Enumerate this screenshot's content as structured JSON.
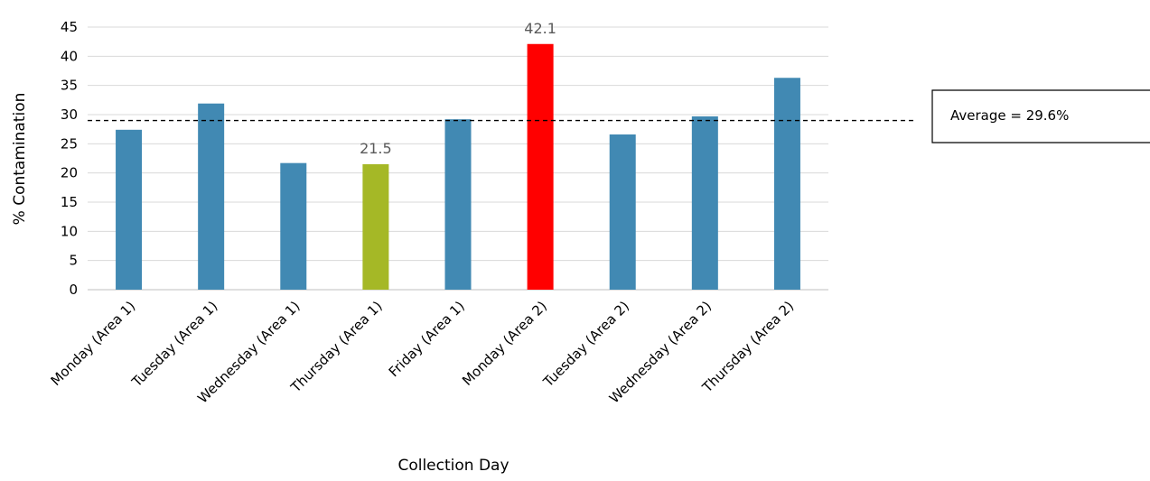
{
  "chart_data": {
    "type": "bar",
    "categories": [
      "Monday (Area 1)",
      "Tuesday (Area 1)",
      "Wednesday (Area 1)",
      "Thursday (Area 1)",
      "Friday (Area 1)",
      "Monday (Area 2)",
      "Tuesday (Area 2)",
      "Wednesday (Area 2)",
      "Thursday (Area 2)"
    ],
    "values": [
      27.4,
      31.9,
      21.7,
      21.5,
      29.2,
      42.1,
      26.6,
      29.7,
      36.3
    ],
    "bar_colors": [
      "#4189b3",
      "#4189b3",
      "#4189b3",
      "#a5b826",
      "#4189b3",
      "#ff0000",
      "#4189b3",
      "#4189b3",
      "#4189b3"
    ],
    "data_labels": [
      "",
      "",
      "",
      "21.5",
      "",
      "42.1",
      "",
      "",
      ""
    ],
    "xlabel": "Collection Day",
    "ylabel": "% Contamination",
    "ylim": [
      0,
      45
    ],
    "yticks": [
      0,
      5,
      10,
      15,
      20,
      25,
      30,
      35,
      40,
      45
    ],
    "grid": true,
    "average": {
      "value": 29.6,
      "label": "Average = 29.6%"
    }
  }
}
